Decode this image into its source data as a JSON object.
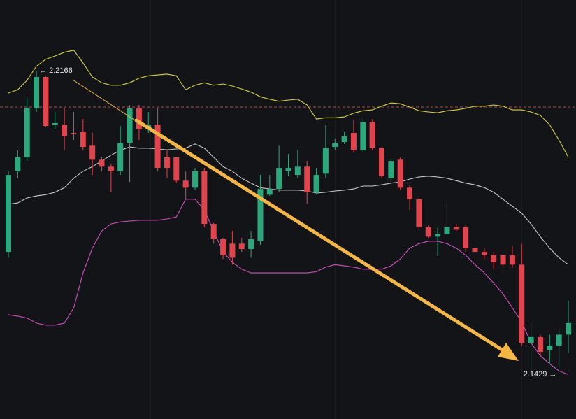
{
  "chart_data": {
    "type": "candlestick",
    "up_color": "#2aa97c",
    "down_color": "#e2444e",
    "ylim": [
      2.132,
      2.2338
    ],
    "open": [
      2.1726,
      2.1922,
      2.1956,
      2.2075,
      2.2151,
      2.2035,
      2.2035,
      2.2015,
      2.2018,
      2.1984,
      2.195,
      2.1933,
      2.1922,
      2.199,
      2.2075,
      2.2024,
      2.2035,
      2.1956,
      2.1956,
      2.1899,
      2.1882,
      2.1922,
      2.1794,
      2.1757,
      2.1746,
      2.1746,
      2.1733,
      2.1752,
      2.1865,
      2.1879,
      2.1922,
      2.1913,
      2.1933,
      2.1871,
      2.1916,
      2.1981,
      2.1993,
      2.2015,
      2.1973,
      2.2041,
      2.1978,
      2.1905,
      2.195,
      2.1882,
      2.1854,
      2.1786,
      2.1763,
      2.1769,
      2.1786,
      2.1786,
      2.1735,
      2.1726,
      2.1718,
      2.1718,
      2.1718,
      2.1695,
      2.1505,
      2.1519,
      2.1488,
      2.1498,
      2.1525
    ],
    "high": [
      2.1922,
      2.1973,
      2.21,
      2.2166,
      2.2154,
      2.2066,
      2.2075,
      2.2066,
      2.2049,
      2.2015,
      2.1956,
      2.1939,
      2.2032,
      2.2083,
      2.2083,
      2.2066,
      2.2075,
      2.1973,
      2.1956,
      2.1922,
      2.193,
      2.193,
      2.1797,
      2.176,
      2.1777,
      2.176,
      2.1777,
      2.1913,
      2.1913,
      2.1984,
      2.1964,
      2.1973,
      2.1947,
      2.193,
      2.2035,
      2.2001,
      2.2018,
      2.2046,
      2.2052,
      2.2049,
      2.1981,
      2.195,
      2.1956,
      2.1888,
      2.1862,
      2.1791,
      2.1786,
      2.1845,
      2.1794,
      2.1791,
      2.1743,
      2.1735,
      2.1726,
      2.1723,
      2.174,
      2.1746,
      2.1556,
      2.1525,
      2.1525,
      2.1539,
      2.1607
    ],
    "low": [
      2.1712,
      2.1905,
      2.1947,
      2.2066,
      2.2029,
      2.2024,
      2.1973,
      2.1998,
      2.1973,
      2.1913,
      2.1922,
      2.1871,
      2.1913,
      2.1896,
      2.1998,
      2.2015,
      2.1922,
      2.1905,
      2.1893,
      2.1854,
      2.1876,
      2.1786,
      2.1746,
      2.1709,
      2.1695,
      2.1726,
      2.1712,
      2.1743,
      2.1862,
      2.1871,
      2.191,
      2.1905,
      2.1842,
      2.1865,
      2.1905,
      2.1973,
      2.1988,
      2.1967,
      2.1967,
      2.1973,
      2.1905,
      2.1896,
      2.1876,
      2.1828,
      2.1777,
      2.176,
      2.1716,
      2.1763,
      2.1777,
      2.1726,
      2.1718,
      2.1709,
      2.1684,
      2.1672,
      2.1687,
      2.1497,
      2.1429,
      2.1471,
      2.1454,
      2.1446,
      2.148
    ],
    "close": [
      2.1913,
      2.1956,
      2.2075,
      2.2151,
      2.2032,
      2.2039,
      2.2007,
      2.2012,
      2.1981,
      2.195,
      2.1933,
      2.1922,
      2.199,
      2.2075,
      2.2024,
      2.2035,
      2.193,
      2.193,
      2.1899,
      2.1882,
      2.1922,
      2.1794,
      2.1757,
      2.1718,
      2.1712,
      2.1733,
      2.1757,
      2.1879,
      2.1879,
      2.193,
      2.193,
      2.1933,
      2.1871,
      2.1913,
      2.1978,
      2.1991,
      2.2007,
      2.1973,
      2.2041,
      2.1978,
      2.191,
      2.1947,
      2.1882,
      2.1854,
      2.1786,
      2.1763,
      2.1769,
      2.1786,
      2.178,
      2.1735,
      2.1726,
      2.1718,
      2.1701,
      2.1695,
      2.1695,
      2.1505,
      2.1519,
      2.1483,
      2.1498,
      2.1525,
      2.1553
    ],
    "overlays": [
      {
        "color": "#d8d23b",
        "values": [
          2.2112,
          2.212,
          2.2143,
          2.2177,
          2.2194,
          2.2202,
          2.2211,
          2.2216,
          2.2185,
          2.2151,
          2.2137,
          2.2131,
          2.2131,
          2.2137,
          2.2148,
          2.2154,
          2.2156,
          2.2158,
          2.2154,
          2.212,
          2.2131,
          2.2137,
          2.2131,
          2.2134,
          2.2129,
          2.2122,
          2.2114,
          2.2103,
          2.2097,
          2.2092,
          2.2095,
          2.2097,
          2.2083,
          2.2049,
          2.2052,
          2.2052,
          2.2054,
          2.2063,
          2.2069,
          2.2071,
          2.208,
          2.2088,
          2.2086,
          2.2078,
          2.2069,
          2.2066,
          2.2064,
          2.2069,
          2.2071,
          2.2075,
          2.208,
          2.208,
          2.2083,
          2.208,
          2.2071,
          2.2071,
          2.2066,
          2.2058,
          2.2035,
          2.1998,
          2.1956
        ]
      },
      {
        "color": "#c9c9c9",
        "values": [
          2.1842,
          2.1845,
          2.1857,
          2.1862,
          2.1865,
          2.1871,
          2.1882,
          2.1905,
          2.1922,
          2.1933,
          2.1947,
          2.1961,
          2.1973,
          2.1981,
          2.1978,
          2.1978,
          2.1976,
          2.1974,
          2.1976,
          2.1978,
          2.1988,
          2.1978,
          2.1956,
          2.1933,
          2.1922,
          2.1905,
          2.1893,
          2.1882,
          2.1879,
          2.1876,
          2.1876,
          2.1876,
          2.1874,
          2.1869,
          2.1871,
          2.1874,
          2.1876,
          2.1879,
          2.1886,
          2.1886,
          2.1889,
          2.1893,
          2.1896,
          2.1903,
          2.1908,
          2.191,
          2.1908,
          2.1905,
          2.1899,
          2.1893,
          2.1889,
          2.1882,
          2.1871,
          2.1854,
          2.1837,
          2.182,
          2.1794,
          2.1763,
          2.1735,
          2.1712,
          2.1695
        ]
      },
      {
        "color": "#d04fbf",
        "values": [
          2.1573,
          2.157,
          2.1565,
          2.1553,
          2.1548,
          2.1548,
          2.1553,
          2.159,
          2.1675,
          2.1735,
          2.1777,
          2.1794,
          2.1799,
          2.1801,
          2.1803,
          2.1803,
          2.1803,
          2.1806,
          2.1811,
          2.1854,
          2.1854,
          2.1828,
          2.1777,
          2.1726,
          2.1701,
          2.1684,
          2.1675,
          2.1675,
          2.1675,
          2.1675,
          2.1675,
          2.1675,
          2.1675,
          2.1678,
          2.1689,
          2.1695,
          2.1692,
          2.1689,
          2.1684,
          2.1684,
          2.1684,
          2.1692,
          2.1709,
          2.1735,
          2.1746,
          2.1752,
          2.1752,
          2.1746,
          2.1735,
          2.1718,
          2.1695,
          2.1675,
          2.165,
          2.1624,
          2.159,
          2.1556,
          2.1505,
          2.1474,
          2.1454,
          2.1437,
          2.1428
        ]
      }
    ],
    "price_line": {
      "value": 2.2078,
      "color": "#d9534f"
    },
    "annotations": [
      {
        "label": "← 2.2166",
        "value": 2.2166,
        "index": 3,
        "side": "right"
      },
      {
        "label": "2.1429 →",
        "value": 2.1429,
        "index": 56,
        "side": "center"
      }
    ]
  }
}
